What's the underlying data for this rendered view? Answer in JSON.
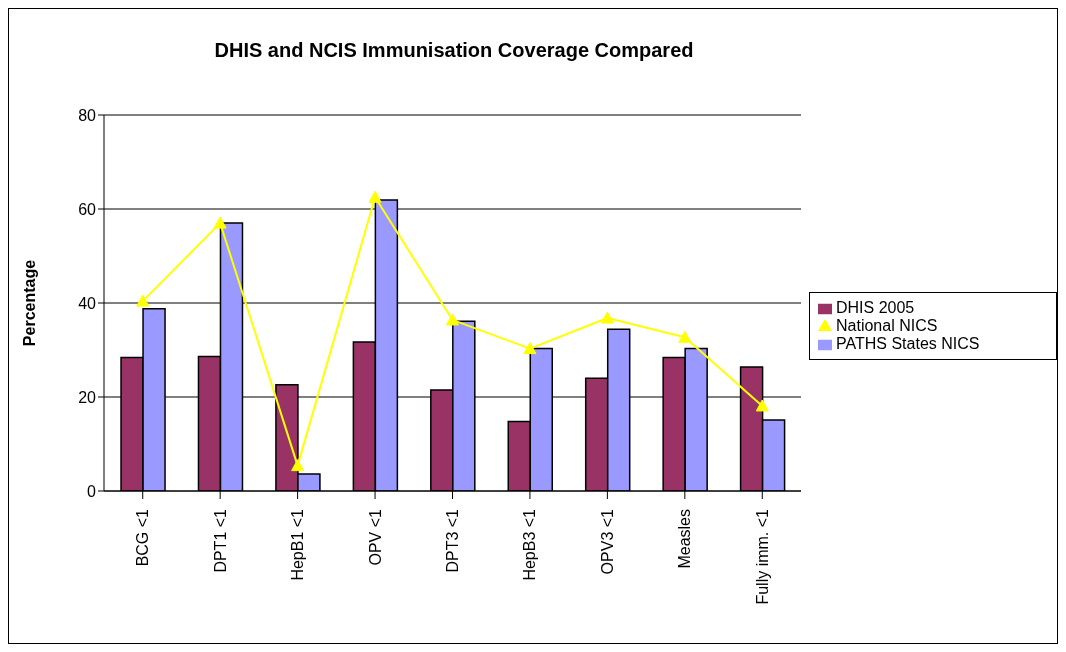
{
  "chart_data": {
    "type": "bar",
    "title": "DHIS and NCIS Immunisation Coverage Compared",
    "ylabel": "Percentage",
    "categories": [
      "BCG <1",
      "DPT1 <1",
      "HepB1 <1",
      "OPV <1",
      "DPT3 <1",
      "HepB3 <1",
      "OPV3 <1",
      "Measles",
      "Fully imm. <1"
    ],
    "series": [
      {
        "name": "DHIS 2005",
        "color": "#993366",
        "values": [
          28.4,
          28.6,
          22.6,
          31.7,
          21.5,
          14.8,
          24.0,
          28.4,
          26.4
        ]
      },
      {
        "name": "PATHS States NICS",
        "color": "#9999ff",
        "values": [
          38.8,
          57.0,
          3.6,
          61.9,
          36.1,
          30.3,
          34.4,
          30.3,
          15.1
        ]
      },
      {
        "name": "National NICS",
        "type": "line",
        "color": "#ffff00",
        "marker": "triangle",
        "values": [
          40.4,
          57.0,
          5.4,
          62.5,
          36.4,
          30.3,
          36.8,
          32.7,
          18.1
        ]
      }
    ],
    "ylim": [
      0,
      80
    ],
    "yticks": [
      0,
      20,
      40,
      60,
      80
    ],
    "grid": "y",
    "legend": "right"
  }
}
